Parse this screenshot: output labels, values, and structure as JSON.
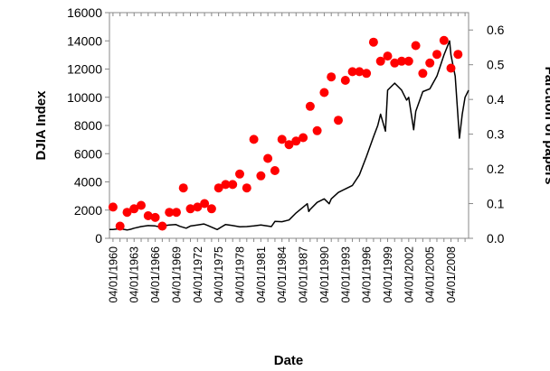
{
  "chart_data": {
    "type": "line+scatter",
    "xlabel": "Date",
    "ylabel_left": "DJIA Index",
    "ylabel_right": "Farction of papers",
    "x_tick_labels": [
      "04/01/1960",
      "04/01/1963",
      "04/01/1966",
      "04/01/1969",
      "04/01/1972",
      "04/01/1975",
      "04/01/1978",
      "04/01/1981",
      "04/01/1984",
      "04/01/1987",
      "04/01/1990",
      "04/01/1993",
      "04/01/1996",
      "04/01/1999",
      "04/01/2002",
      "04/01/2005",
      "04/01/2008"
    ],
    "xlim": [
      1959.5,
      2010.5
    ],
    "ylim_left": [
      0,
      16000
    ],
    "y_ticks_left": [
      0,
      2000,
      4000,
      6000,
      8000,
      10000,
      12000,
      14000,
      16000
    ],
    "ylim_right": [
      0,
      0.65
    ],
    "y_ticks_right": [
      0.0,
      0.1,
      0.2,
      0.3,
      0.4,
      0.5,
      0.6
    ],
    "y_ticks_right_labels": [
      "0.0",
      "0.1",
      "0.2",
      "0.3",
      "0.4",
      "0.5",
      "0.6"
    ],
    "series": [
      {
        "axis": "left",
        "style": "line",
        "color": "#000000",
        "x": [
          1959.5,
          1960,
          1961,
          1962,
          1962.5,
          1963,
          1964,
          1965,
          1966,
          1966.7,
          1967,
          1968,
          1968.9,
          1969.5,
          1970.4,
          1971,
          1972,
          1972.9,
          1973.5,
          1974.8,
          1975.5,
          1976,
          1977,
          1978,
          1979,
          1980,
          1981,
          1982.5,
          1983,
          1984,
          1985,
          1986,
          1987.6,
          1987.8,
          1988,
          1989,
          1990,
          1990.7,
          1991,
          1992,
          1993,
          1994,
          1995,
          1996,
          1997,
          1997.6,
          1998,
          1998.7,
          1999,
          2000,
          2001,
          2001.7,
          2002,
          2002.7,
          2003,
          2004,
          2005,
          2006,
          2007,
          2007.8,
          2008,
          2008.6,
          2009.2,
          2009.6,
          2010,
          2010.5
        ],
        "y": [
          620,
          630,
          680,
          590,
          640,
          720,
          830,
          900,
          880,
          800,
          880,
          940,
          980,
          850,
          720,
          870,
          950,
          1020,
          900,
          620,
          830,
          980,
          900,
          820,
          830,
          880,
          950,
          830,
          1200,
          1180,
          1300,
          1800,
          2450,
          1900,
          2050,
          2550,
          2800,
          2450,
          2800,
          3250,
          3500,
          3750,
          4500,
          5800,
          7200,
          8000,
          8800,
          7600,
          10500,
          11000,
          10500,
          9800,
          10000,
          7700,
          9000,
          10400,
          10600,
          11500,
          13000,
          14000,
          13000,
          11500,
          7100,
          8800,
          10000,
          10500
        ]
      },
      {
        "axis": "right",
        "style": "scatter",
        "color": "#ff0000",
        "x": [
          1960,
          1961,
          1962,
          1963,
          1964,
          1965,
          1966,
          1967,
          1968,
          1969,
          1970,
          1971,
          1972,
          1973,
          1974,
          1975,
          1976,
          1977,
          1978,
          1979,
          1980,
          1981,
          1982,
          1983,
          1984,
          1985,
          1986,
          1987,
          1988,
          1989,
          1990,
          1991,
          1992,
          1993,
          1994,
          1995,
          1996,
          1997,
          1998,
          1999,
          2000,
          2001,
          2002,
          2003,
          2004,
          2005,
          2006,
          2007,
          2008,
          2009
        ],
        "y": [
          0.09,
          0.035,
          0.075,
          0.085,
          0.095,
          0.065,
          0.06,
          0.035,
          0.075,
          0.075,
          0.145,
          0.085,
          0.09,
          0.1,
          0.085,
          0.145,
          0.155,
          0.155,
          0.185,
          0.145,
          0.285,
          0.18,
          0.23,
          0.195,
          0.285,
          0.27,
          0.28,
          0.29,
          0.38,
          0.31,
          0.42,
          0.465,
          0.34,
          0.455,
          0.48,
          0.48,
          0.475,
          0.565,
          0.51,
          0.525,
          0.505,
          0.51,
          0.51,
          0.555,
          0.475,
          0.505,
          0.53,
          0.57,
          0.49,
          0.53
        ]
      }
    ]
  }
}
